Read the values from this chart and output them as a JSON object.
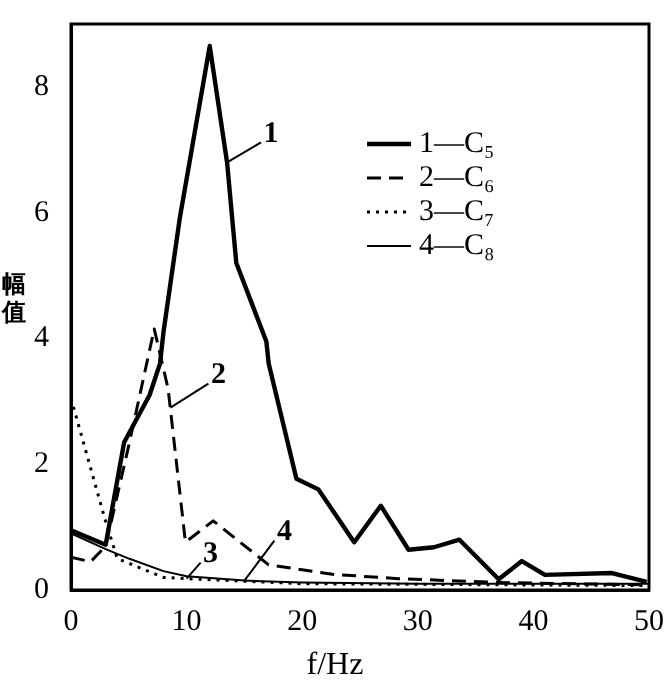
{
  "chart_data": {
    "type": "line",
    "xlabel": "f/Hz",
    "ylabel": "幅值",
    "xlim": [
      0,
      50
    ],
    "xticks": [
      0,
      10,
      20,
      30,
      40,
      50
    ],
    "ylim": [
      0,
      9
    ],
    "yticks": [
      0,
      2,
      4,
      6,
      8
    ],
    "grid": false,
    "legend": "top right",
    "marker": "none",
    "series": [
      {
        "name": "1—C₅",
        "color": "#000000",
        "line_style": "solid",
        "x": [
          0,
          3,
          4.6,
          6.8,
          7.7,
          8,
          9.4,
          12,
          13.5,
          14.3,
          16.9,
          17.1,
          19.5,
          21.4,
          24.5,
          26.8,
          29.2,
          31.4,
          33.6,
          37,
          39,
          41,
          46.8,
          49.8
        ],
        "values": [
          0.95,
          0.72,
          2.35,
          3.1,
          3.6,
          4.1,
          5.9,
          8.65,
          6.8,
          5.2,
          3.95,
          3.6,
          1.77,
          1.6,
          0.76,
          1.34,
          0.64,
          0.68,
          0.8,
          0.17,
          0.46,
          0.24,
          0.27,
          0.13
        ]
      },
      {
        "name": "2—C₆",
        "color": "#000000",
        "line_style": "dashed",
        "x": [
          0,
          1.7,
          3,
          5,
          7.2,
          8.4,
          9.9,
          12.3,
          17.1,
          22.6,
          28.3,
          37,
          50
        ],
        "values": [
          0.52,
          0.45,
          0.7,
          2.3,
          4.15,
          3.2,
          0.76,
          1.1,
          0.4,
          0.25,
          0.18,
          0.12,
          0.08
        ]
      },
      {
        "name": "3—C₇",
        "color": "#000000",
        "line_style": "dotted",
        "x": [
          0,
          2.9,
          4,
          8,
          10,
          20,
          50
        ],
        "values": [
          3.05,
          1.15,
          0.5,
          0.2,
          0.18,
          0.1,
          0.07
        ]
      },
      {
        "name": "4—C₈",
        "color": "#000000",
        "line_style": "solid",
        "x": [
          0,
          3,
          5,
          8,
          10,
          15,
          20,
          30,
          40,
          50
        ],
        "values": [
          0.9,
          0.65,
          0.5,
          0.3,
          0.22,
          0.15,
          0.12,
          0.1,
          0.1,
          0.1
        ]
      }
    ],
    "annotations": [
      {
        "text": "1",
        "x": 13.5,
        "y": 6.8
      },
      {
        "text": "2",
        "x": 8.6,
        "y": 2.9
      },
      {
        "text": "3",
        "x": 10,
        "y": 0.18
      },
      {
        "text": "4",
        "x": 15,
        "y": 0.15
      }
    ]
  }
}
